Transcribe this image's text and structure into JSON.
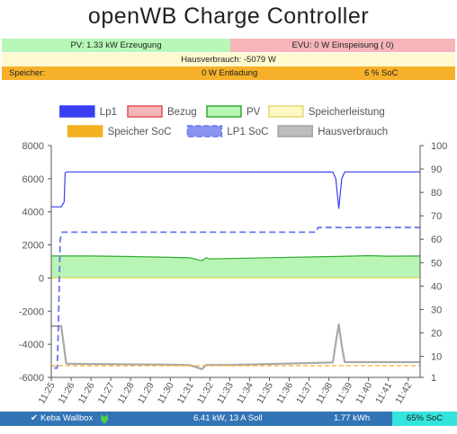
{
  "header": {
    "title": "openWB Charge Controller"
  },
  "status": {
    "pv_text": "PV: 1.33 kW Erzeugung",
    "evu_text": "EVU: 0 W Einspeisung ( 0)",
    "hausverbrauch_text": "Hausverbrauch: -5079 W",
    "speicher_label": "Speicher:",
    "speicher_value": "0 W Entladung",
    "speicher_soc": "6 % SoC"
  },
  "colors": {
    "lp1": "#3a3ff2",
    "bezug": "#e05050",
    "pv": "#34a834",
    "pv_fill": "#b8f5b4",
    "speicherleistung": "#eaea66",
    "speicher_soc": "#f4b020",
    "lp1_soc": "#6677ee",
    "hausverbrauch": "#a9a9a9",
    "bar_pv": "#b8f7b6",
    "bar_evu": "#f6b6b9",
    "bar_haus": "#fff9cf",
    "bar_speicher": "#f6b02a",
    "bar_bottom": "#3374b6",
    "bar_soc": "#33e3dc"
  },
  "chart_data": {
    "type": "line",
    "legend": [
      "Lp1",
      "Bezug",
      "PV",
      "Speicherleistung",
      "Speicher SoC",
      "LP1 SoC",
      "Hausverbrauch"
    ],
    "legend_placement": "top",
    "grid": false,
    "x_tick_labels": [
      "11:25",
      "11:26",
      "11:26",
      "11:27",
      "11:28",
      "11:29",
      "11:30",
      "11:31",
      "11:32",
      "11:33",
      "11:34",
      "11:35",
      "11:36",
      "11:37",
      "11:38",
      "11:39",
      "11:40",
      "11:41",
      "11:42"
    ],
    "x_tick_positions": [
      0,
      1,
      2,
      3,
      4,
      5,
      6,
      7,
      8,
      9,
      10,
      11,
      12,
      13,
      14,
      15,
      16,
      17,
      18
    ],
    "xlim": [
      0,
      18.6
    ],
    "y_left": {
      "ylim": [
        -6000,
        8000
      ],
      "ticks": [
        8000,
        6000,
        4000,
        2000,
        0,
        -2000,
        -4000,
        -6000
      ]
    },
    "y_right": {
      "ylim": [
        1,
        100
      ],
      "ticks": [
        100,
        90,
        80,
        70,
        60,
        50,
        40,
        30,
        20,
        10,
        1
      ]
    },
    "series": [
      {
        "name": "Lp1",
        "axis": "left",
        "x": [
          0,
          0.5,
          0.65,
          0.7,
          0.8,
          14.2,
          14.35,
          14.5,
          14.65,
          14.8,
          18.6
        ],
        "values": [
          4300,
          4300,
          4600,
          6350,
          6410,
          6400,
          6000,
          4200,
          6000,
          6410,
          6410
        ]
      },
      {
        "name": "Bezug",
        "axis": "left",
        "x": [
          0,
          18.6
        ],
        "values": [
          0,
          0
        ]
      },
      {
        "name": "PV",
        "axis": "left",
        "x": [
          0,
          2,
          4,
          6,
          7,
          7.6,
          7.8,
          8,
          9,
          11,
          13,
          15,
          16,
          17,
          18.6
        ],
        "values": [
          1330,
          1330,
          1300,
          1250,
          1220,
          1050,
          1220,
          1160,
          1180,
          1230,
          1270,
          1320,
          1350,
          1320,
          1330
        ]
      },
      {
        "name": "Speicherleistung",
        "axis": "left",
        "x": [
          0,
          18.6
        ],
        "values": [
          0,
          0
        ]
      },
      {
        "name": "Speicher SoC",
        "axis": "right",
        "x": [
          0,
          18.6
        ],
        "values": [
          6,
          6
        ]
      },
      {
        "name": "LP1 SoC",
        "axis": "right",
        "x": [
          0.15,
          0.3,
          0.35,
          0.45,
          0.55,
          13.2,
          13.35,
          13.45,
          18.6
        ],
        "values": [
          5,
          5,
          20,
          60,
          63,
          63,
          63,
          65,
          65
        ]
      },
      {
        "name": "Hausverbrauch",
        "axis": "left",
        "x": [
          0,
          0.5,
          0.65,
          0.75,
          0.85,
          6,
          7,
          7.6,
          7.8,
          8,
          9,
          14.2,
          14.35,
          14.5,
          14.65,
          14.8,
          18.6
        ],
        "values": [
          -2900,
          -2900,
          -4200,
          -5150,
          -5180,
          -5230,
          -5260,
          -5500,
          -5260,
          -5250,
          -5250,
          -5100,
          -3900,
          -2800,
          -4100,
          -5080,
          -5080
        ]
      }
    ]
  },
  "footer": {
    "check_mark": "✔",
    "wallbox_name": "Keba Wallbox",
    "plug_icon": "plug-icon",
    "charge_info": "6.41 kW, 13 A Soll",
    "energy": "1.77 kWh",
    "soc": "65% SoC"
  }
}
